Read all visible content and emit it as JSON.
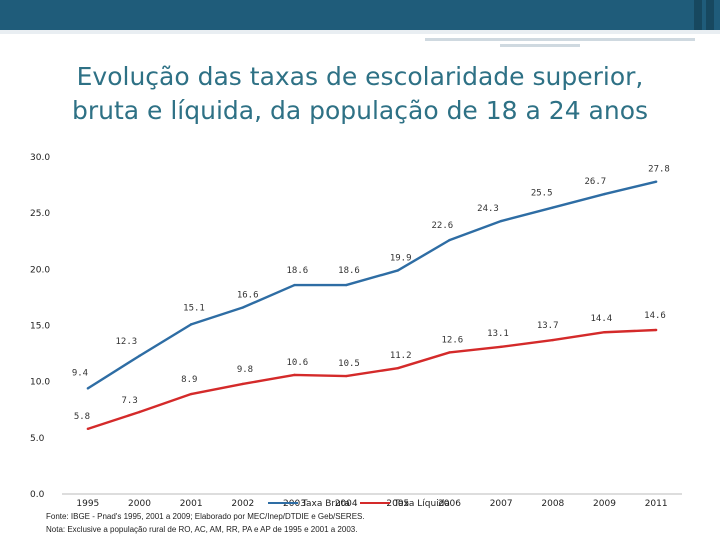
{
  "title_line1": "Evolução das taxas de escolaridade superior,",
  "title_line2": "bruta e líquida, da população de 18 a 24 anos",
  "chart_data": {
    "type": "line",
    "categories": [
      "1995",
      "2000",
      "2001",
      "2002",
      "2003",
      "2004",
      "2005",
      "2006",
      "2007",
      "2008",
      "2009",
      "2011"
    ],
    "yticks": [
      "0.0",
      "5.0",
      "10.0",
      "15.0",
      "20.0",
      "25.0",
      "30.0"
    ],
    "ylim": [
      0,
      30
    ],
    "series": [
      {
        "name": "Taxa Bruta",
        "color": "#2e6da4",
        "values": [
          9.4,
          12.3,
          15.1,
          16.6,
          18.6,
          18.6,
          19.9,
          22.6,
          24.3,
          25.5,
          26.7,
          27.8
        ],
        "labels": [
          "9.4",
          "12.3",
          "15.1",
          "16.6",
          "18.6",
          "18.6",
          "19.9",
          "22.6",
          "24.3",
          "25.5",
          "26.7",
          "27.8"
        ]
      },
      {
        "name": "Taxa Líquida",
        "color": "#d42a2a",
        "values": [
          5.8,
          7.3,
          8.9,
          9.8,
          10.6,
          10.5,
          11.2,
          12.6,
          13.1,
          13.7,
          14.4,
          14.6
        ],
        "labels": [
          "5.8",
          "7.3",
          "8.9",
          "9.8",
          "10.6",
          "10.5",
          "11.2",
          "12.6",
          "13.1",
          "13.7",
          "14.4",
          "14.6"
        ]
      }
    ],
    "legend": "bottom-center"
  },
  "footnote_source": "Fonte: IBGE - Pnad's 1995, 2001 a 2009; Elaborado por MEC/Inep/DTDIE e Geb/SERES.",
  "footnote_note": "Nota: Exclusive a população rural de RO, AC, AM, RR, PA e AP de 1995 e 2001 a 2003."
}
